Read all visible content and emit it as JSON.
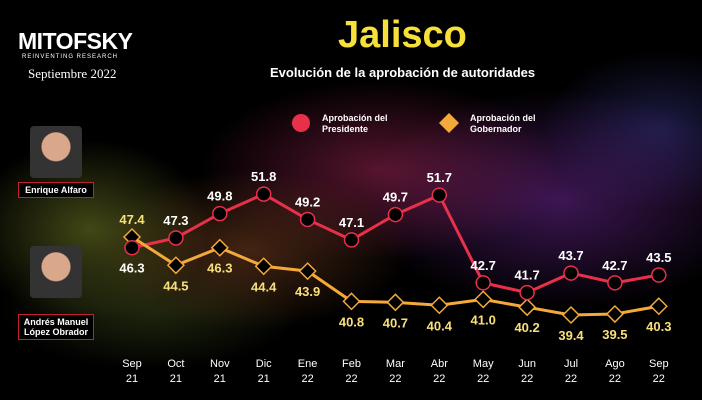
{
  "header": {
    "brand": "MITOFSKY",
    "brand_tagline": "REINVENTING RESEARCH",
    "date": "Septiembre 2022",
    "title": "Jalisco",
    "subtitle": "Evolución de la aprobación de autoridades"
  },
  "people": [
    {
      "name": "Enrique Alfaro"
    },
    {
      "name": "Andrés Manuel López Obrador"
    }
  ],
  "chart_data": {
    "type": "line",
    "title": "Jalisco",
    "subtitle": "Evolución de la aprobación de autoridades",
    "categories": [
      [
        "Sep",
        "21"
      ],
      [
        "Oct",
        "21"
      ],
      [
        "Nov",
        "21"
      ],
      [
        "Dic",
        "21"
      ],
      [
        "Ene",
        "22"
      ],
      [
        "Feb",
        "22"
      ],
      [
        "Mar",
        "22"
      ],
      [
        "Abr",
        "22"
      ],
      [
        "May",
        "22"
      ],
      [
        "Jun",
        "22"
      ],
      [
        "Jul",
        "22"
      ],
      [
        "Ago",
        "22"
      ],
      [
        "Sep",
        "22"
      ]
    ],
    "series": [
      {
        "name": "Aprobación del Presidente",
        "color": "#e8304a",
        "label_color": "#ffffff",
        "marker": "circle",
        "values": [
          46.3,
          47.3,
          49.8,
          51.8,
          49.2,
          47.1,
          49.7,
          51.7,
          42.7,
          41.7,
          43.7,
          42.7,
          43.5
        ]
      },
      {
        "name": "Aprobación del Gobernador",
        "color": "#f4a93a",
        "label_color": "#f7e07a",
        "marker": "diamond",
        "values": [
          47.4,
          44.5,
          46.3,
          44.4,
          43.9,
          40.8,
          40.7,
          40.4,
          41.0,
          40.2,
          39.4,
          39.5,
          40.3
        ]
      }
    ],
    "legend": "top",
    "grid": false
  }
}
